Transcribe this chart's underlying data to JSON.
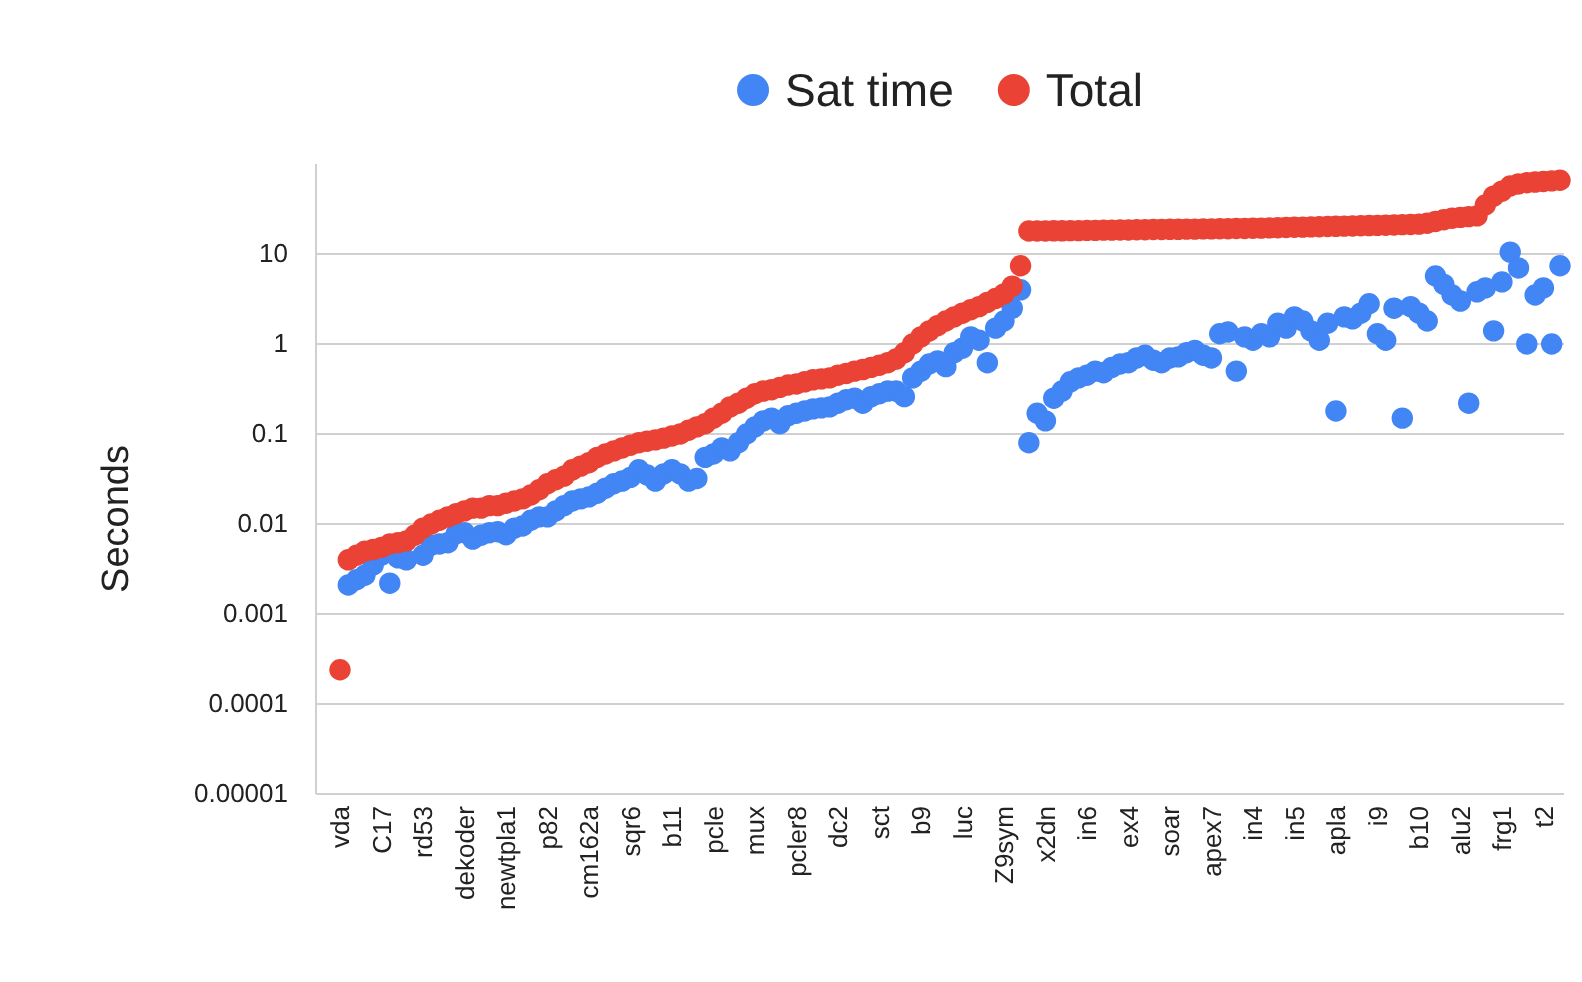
{
  "chart_data": {
    "type": "scatter",
    "ylabel": "Seconds",
    "log": true,
    "grid": "y",
    "legend": "top",
    "marker": "circle",
    "ylim": [
      1e-05,
      100
    ],
    "yticks": [
      {
        "value": 1e-05,
        "label": "0.00001"
      },
      0.0001,
      0.001,
      0.01,
      0.1,
      1,
      10
    ],
    "categories": [
      "vda",
      null,
      null,
      null,
      null,
      "C17",
      null,
      null,
      null,
      null,
      "rd53",
      null,
      null,
      null,
      null,
      "dekoder",
      null,
      null,
      null,
      null,
      "newtpla1",
      null,
      null,
      null,
      null,
      "p82",
      null,
      null,
      null,
      null,
      "cm162a",
      null,
      null,
      null,
      null,
      "sqr6",
      null,
      null,
      null,
      null,
      "b11",
      null,
      null,
      null,
      null,
      "pcle",
      null,
      null,
      null,
      null,
      "mux",
      null,
      null,
      null,
      null,
      "pcler8",
      null,
      null,
      null,
      null,
      "dc2",
      null,
      null,
      null,
      null,
      "sct",
      null,
      null,
      null,
      null,
      "b9",
      null,
      null,
      null,
      null,
      "luc",
      null,
      null,
      null,
      null,
      "Z9sym",
      null,
      null,
      null,
      null,
      "x2dn",
      null,
      null,
      null,
      null,
      "in6",
      null,
      null,
      null,
      null,
      "ex4",
      null,
      null,
      null,
      null,
      "soar",
      null,
      null,
      null,
      null,
      "apex7",
      null,
      null,
      null,
      null,
      "in4",
      null,
      null,
      null,
      null,
      "in5",
      null,
      null,
      null,
      null,
      "apla",
      null,
      null,
      null,
      null,
      "i9",
      null,
      null,
      null,
      null,
      "b10",
      null,
      null,
      null,
      null,
      "alu2",
      null,
      null,
      null,
      null,
      "frg1",
      null,
      null,
      null,
      null,
      "t2",
      null,
      null
    ],
    "series": [
      {
        "name": "Sat time",
        "color": "#4285f4",
        "values": [
          null,
          0.0021,
          0.0024,
          0.0027,
          0.0035,
          0.0045,
          0.0022,
          0.0042,
          0.004,
          null,
          0.0045,
          0.0058,
          0.006,
          0.0062,
          0.0078,
          0.008,
          0.0068,
          0.0075,
          0.008,
          0.0082,
          0.0076,
          0.009,
          0.0095,
          0.011,
          0.012,
          0.012,
          0.014,
          0.016,
          0.018,
          0.019,
          0.02,
          0.022,
          0.025,
          0.028,
          0.03,
          0.033,
          0.04,
          0.035,
          0.03,
          0.036,
          0.04,
          0.036,
          0.03,
          0.032,
          0.055,
          0.06,
          0.07,
          0.065,
          0.08,
          0.1,
          0.12,
          0.14,
          0.15,
          0.13,
          0.16,
          0.17,
          0.18,
          0.19,
          0.195,
          0.2,
          0.22,
          0.24,
          0.25,
          0.22,
          0.26,
          0.28,
          0.3,
          0.3,
          0.26,
          0.42,
          0.5,
          0.6,
          0.65,
          0.56,
          0.8,
          0.9,
          1.2,
          1.1,
          0.62,
          1.5,
          1.8,
          2.5,
          4.0,
          0.08,
          0.17,
          0.14,
          0.25,
          0.3,
          0.38,
          0.42,
          0.45,
          0.5,
          0.48,
          0.55,
          0.6,
          0.62,
          0.7,
          0.75,
          0.66,
          0.62,
          0.7,
          0.72,
          0.8,
          0.85,
          0.75,
          0.7,
          1.3,
          1.36,
          0.5,
          1.2,
          1.1,
          1.3,
          1.2,
          1.7,
          1.5,
          2.0,
          1.8,
          1.4,
          1.1,
          1.7,
          0.18,
          2.0,
          1.9,
          2.2,
          2.8,
          1.3,
          1.1,
          2.5,
          0.15,
          2.6,
          2.2,
          1.8,
          5.7,
          4.6,
          3.5,
          3.0,
          0.22,
          3.8,
          4.2,
          1.4,
          4.9,
          10.5,
          7.0,
          1.0,
          3.5,
          4.2,
          1.0,
          7.4
        ]
      },
      {
        "name": "Total",
        "color": "#ea4335",
        "values": [
          0.00024,
          0.004,
          0.0045,
          0.005,
          0.0052,
          0.0055,
          0.006,
          0.0062,
          0.0065,
          0.0075,
          0.009,
          0.01,
          0.011,
          0.012,
          0.013,
          0.014,
          0.015,
          0.015,
          0.016,
          0.016,
          0.017,
          0.018,
          0.019,
          0.021,
          0.024,
          0.028,
          0.031,
          0.034,
          0.04,
          0.044,
          0.048,
          0.055,
          0.06,
          0.065,
          0.07,
          0.075,
          0.08,
          0.083,
          0.086,
          0.09,
          0.095,
          0.1,
          0.11,
          0.12,
          0.13,
          0.15,
          0.17,
          0.2,
          0.22,
          0.25,
          0.28,
          0.3,
          0.31,
          0.33,
          0.35,
          0.36,
          0.38,
          0.4,
          0.41,
          0.42,
          0.45,
          0.47,
          0.5,
          0.52,
          0.55,
          0.58,
          0.62,
          0.68,
          0.8,
          1.0,
          1.2,
          1.4,
          1.6,
          1.8,
          2.0,
          2.2,
          2.4,
          2.6,
          2.9,
          3.2,
          3.6,
          4.4,
          7.4,
          18,
          18,
          18,
          18.1,
          18.1,
          18.2,
          18.2,
          18.3,
          18.3,
          18.4,
          18.4,
          18.5,
          18.5,
          18.6,
          18.6,
          18.7,
          18.7,
          18.8,
          18.8,
          18.9,
          18.9,
          19,
          19,
          19.1,
          19.1,
          19.2,
          19.2,
          19.3,
          19.4,
          19.5,
          19.6,
          19.7,
          19.8,
          19.9,
          20,
          20.1,
          20.2,
          20.3,
          20.4,
          20.5,
          20.6,
          20.7,
          20.8,
          20.9,
          21,
          21.2,
          21.3,
          21.5,
          22,
          23,
          24,
          25,
          25.5,
          26,
          26.5,
          35,
          44,
          50,
          57,
          60,
          62,
          63,
          64,
          65,
          66
        ]
      }
    ]
  }
}
